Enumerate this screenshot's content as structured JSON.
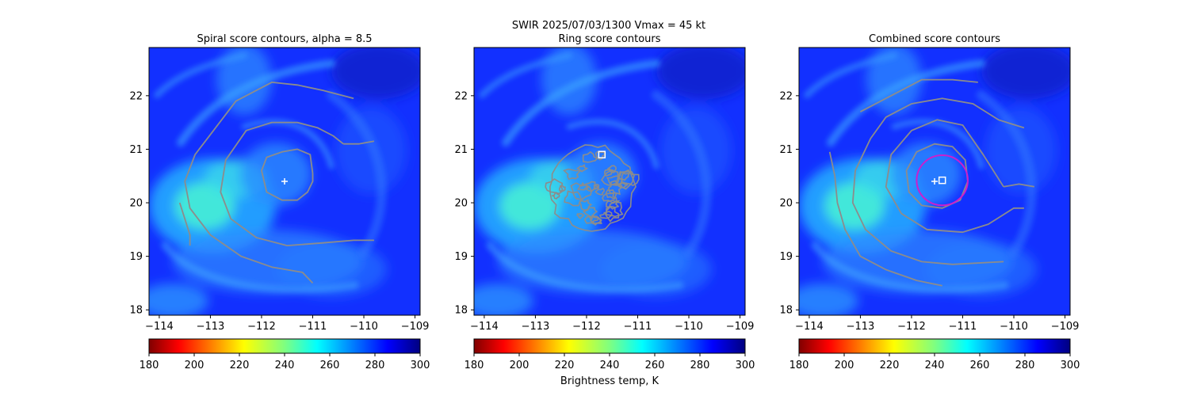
{
  "figure": {
    "suptitle_line1": "SWIR  2025/07/03/1300    Vmax = 45 kt",
    "colorbar_label": "Brightness temp, K"
  },
  "colors": {
    "contour": "#8c8c8c",
    "combined_ring": "#cc1fcc",
    "marker": "#ffffff",
    "background": "#ffffff"
  },
  "colorbar": {
    "colormap": "jet_r",
    "range": [
      180,
      300
    ],
    "ticks": [
      "180",
      "200",
      "220",
      "240",
      "260",
      "280",
      "300"
    ]
  },
  "chart_data": [
    {
      "type": "heatmap",
      "title": "Spiral score contours, alpha =  8.5",
      "xlim": [
        -114.2,
        -108.9
      ],
      "ylim": [
        17.9,
        22.9
      ],
      "xticks": [
        "−114",
        "−113",
        "−112",
        "−111",
        "−110",
        "−109"
      ],
      "yticks": [
        "18",
        "19",
        "20",
        "21",
        "22"
      ],
      "center_plus": [
        -111.55,
        20.4
      ],
      "contours": [
        {
          "level": "inner",
          "path": [
            [
              -111.0,
              20.55
            ],
            [
              -111.05,
              20.9
            ],
            [
              -111.3,
              21.0
            ],
            [
              -111.6,
              20.95
            ],
            [
              -111.9,
              20.85
            ],
            [
              -112.0,
              20.6
            ],
            [
              -111.9,
              20.2
            ],
            [
              -111.6,
              20.05
            ],
            [
              -111.3,
              20.05
            ],
            [
              -111.1,
              20.2
            ],
            [
              -111.0,
              20.4
            ],
            [
              -111.0,
              20.55
            ]
          ]
        },
        {
          "level": "mid",
          "path": [
            [
              -110.4,
              21.1
            ],
            [
              -110.6,
              21.25
            ],
            [
              -110.9,
              21.4
            ],
            [
              -111.3,
              21.5
            ],
            [
              -111.8,
              21.5
            ],
            [
              -112.3,
              21.35
            ],
            [
              -112.7,
              20.8
            ],
            [
              -112.8,
              20.2
            ],
            [
              -112.6,
              19.7
            ],
            [
              -112.1,
              19.35
            ],
            [
              -111.5,
              19.2
            ],
            [
              -110.8,
              19.25
            ],
            [
              -110.2,
              19.3
            ],
            [
              -109.8,
              19.3
            ]
          ]
        },
        {
          "level": "outer",
          "path": [
            [
              -110.2,
              21.95
            ],
            [
              -110.8,
              22.1
            ],
            [
              -111.3,
              22.2
            ],
            [
              -111.8,
              22.25
            ],
            [
              -112.5,
              21.9
            ],
            [
              -112.9,
              21.4
            ],
            [
              -113.3,
              20.9
            ],
            [
              -113.5,
              20.4
            ],
            [
              -113.4,
              19.9
            ],
            [
              -113.0,
              19.4
            ],
            [
              -112.4,
              19.0
            ],
            [
              -111.8,
              18.8
            ],
            [
              -111.2,
              18.7
            ],
            [
              -111.0,
              18.5
            ]
          ]
        },
        {
          "level": "arm",
          "path": [
            [
              -113.6,
              20.0
            ],
            [
              -113.5,
              19.7
            ],
            [
              -113.4,
              19.4
            ],
            [
              -113.4,
              19.2
            ]
          ]
        },
        {
          "level": "arm2",
          "path": [
            [
              -109.8,
              21.15
            ],
            [
              -110.1,
              21.1
            ],
            [
              -110.4,
              21.1
            ]
          ]
        }
      ]
    },
    {
      "type": "heatmap",
      "title": "Ring score contours",
      "xlim": [
        -114.2,
        -108.9
      ],
      "ylim": [
        17.9,
        22.9
      ],
      "xticks": [
        "−114",
        "−113",
        "−112",
        "−111",
        "−110",
        "−109"
      ],
      "yticks": [
        "18",
        "19",
        "20",
        "21",
        "22"
      ],
      "center_square": [
        -111.7,
        20.9
      ],
      "ring_region": {
        "center": [
          -111.9,
          20.3
        ],
        "radius_deg": 0.85
      }
    },
    {
      "type": "heatmap",
      "title": "Combined score contours",
      "xlim": [
        -114.2,
        -108.9
      ],
      "ylim": [
        17.9,
        22.9
      ],
      "xticks": [
        "−114",
        "−113",
        "−112",
        "−111",
        "−110",
        "−109"
      ],
      "yticks": [
        "18",
        "19",
        "20",
        "21",
        "22"
      ],
      "center_plus": [
        -111.55,
        20.4
      ],
      "center_square": [
        -111.4,
        20.42
      ],
      "best_ring": {
        "center": [
          -111.4,
          20.42
        ],
        "radius_deg": 0.5
      },
      "contours": [
        {
          "level": "inner",
          "path": [
            [
              -110.9,
              20.4
            ],
            [
              -110.95,
              20.8
            ],
            [
              -111.2,
              21.05
            ],
            [
              -111.55,
              21.1
            ],
            [
              -111.9,
              20.95
            ],
            [
              -112.1,
              20.6
            ],
            [
              -112.05,
              20.2
            ],
            [
              -111.8,
              19.95
            ],
            [
              -111.4,
              19.9
            ],
            [
              -111.05,
              20.05
            ],
            [
              -110.9,
              20.4
            ]
          ]
        },
        {
          "level": "mid",
          "path": [
            [
              -110.2,
              20.3
            ],
            [
              -110.6,
              20.9
            ],
            [
              -111.0,
              21.45
            ],
            [
              -111.5,
              21.55
            ],
            [
              -112.0,
              21.35
            ],
            [
              -112.4,
              20.9
            ],
            [
              -112.5,
              20.3
            ],
            [
              -112.2,
              19.8
            ],
            [
              -111.7,
              19.5
            ],
            [
              -111.0,
              19.45
            ],
            [
              -110.5,
              19.6
            ],
            [
              -110.0,
              19.9
            ],
            [
              -109.8,
              19.9
            ]
          ]
        },
        {
          "level": "mid2",
          "path": [
            [
              -110.2,
              20.3
            ],
            [
              -109.9,
              20.35
            ],
            [
              -109.6,
              20.3
            ]
          ]
        },
        {
          "level": "outer",
          "path": [
            [
              -109.8,
              21.4
            ],
            [
              -110.3,
              21.55
            ],
            [
              -110.8,
              21.85
            ],
            [
              -111.4,
              21.95
            ],
            [
              -112.0,
              21.85
            ],
            [
              -112.5,
              21.6
            ],
            [
              -112.8,
              21.2
            ],
            [
              -113.1,
              20.6
            ],
            [
              -113.15,
              20.0
            ],
            [
              -112.9,
              19.5
            ],
            [
              -112.4,
              19.1
            ],
            [
              -111.8,
              18.9
            ],
            [
              -111.2,
              18.85
            ],
            [
              -110.2,
              18.9
            ]
          ]
        },
        {
          "level": "outer2",
          "path": [
            [
              -113.0,
              21.7
            ],
            [
              -112.4,
              22.0
            ],
            [
              -111.8,
              22.3
            ],
            [
              -111.2,
              22.3
            ],
            [
              -110.7,
              22.25
            ]
          ]
        },
        {
          "level": "arm",
          "path": [
            [
              -113.6,
              20.95
            ],
            [
              -113.5,
              20.5
            ],
            [
              -113.45,
              20.0
            ],
            [
              -113.3,
              19.5
            ],
            [
              -113.0,
              19.0
            ],
            [
              -112.5,
              18.75
            ],
            [
              -111.9,
              18.55
            ],
            [
              -111.4,
              18.45
            ]
          ]
        }
      ]
    }
  ]
}
